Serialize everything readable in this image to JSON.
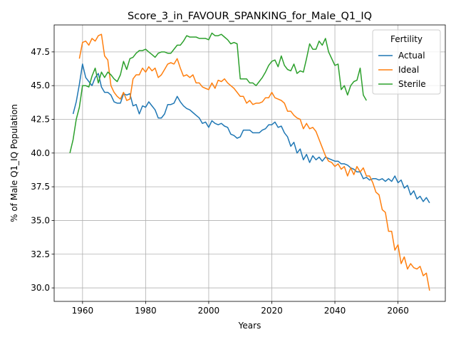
{
  "chart_data": {
    "type": "line",
    "title": "Score_3_in_FAVOUR_SPANKING_for_Male_Q1_IQ",
    "xlabel": "Years",
    "ylabel": "% of Male Q1_IQ Population",
    "xlim": [
      1951,
      2075
    ],
    "ylim": [
      29.0,
      49.5
    ],
    "xticks": [
      1960,
      1980,
      2000,
      2020,
      2040,
      2060
    ],
    "yticks": [
      30.0,
      32.5,
      35.0,
      37.5,
      40.0,
      42.5,
      45.0,
      47.5
    ],
    "grid": true,
    "legend": {
      "title": "Fertility",
      "placement": "top-right"
    },
    "series": [
      {
        "name": "Actual",
        "color": "#1f77b4",
        "x": [
          1957,
          1958,
          1959,
          1960,
          1961,
          1962,
          1963,
          1964,
          1965,
          1966,
          1967,
          1968,
          1969,
          1970,
          1971,
          1972,
          1973,
          1974,
          1975,
          1976,
          1977,
          1978,
          1979,
          1980,
          1981,
          1982,
          1983,
          1984,
          1985,
          1986,
          1987,
          1988,
          1989,
          1990,
          1991,
          1992,
          1993,
          1994,
          1995,
          1996,
          1997,
          1998,
          1999,
          2000,
          2001,
          2002,
          2003,
          2004,
          2005,
          2006,
          2007,
          2008,
          2009,
          2010,
          2011,
          2012,
          2013,
          2014,
          2015,
          2016,
          2017,
          2018,
          2019,
          2020,
          2021,
          2022,
          2023,
          2024,
          2025,
          2026,
          2027,
          2028,
          2029,
          2030,
          2031,
          2032,
          2033,
          2034,
          2035,
          2036,
          2037,
          2038,
          2039,
          2040,
          2041,
          2042,
          2043,
          2044,
          2045,
          2046,
          2047,
          2048,
          2049,
          2050,
          2051,
          2052,
          2053,
          2054,
          2055,
          2056,
          2057,
          2058,
          2059,
          2060,
          2061,
          2062,
          2063,
          2064,
          2065,
          2066,
          2067,
          2068,
          2069,
          2070
        ],
        "values": [
          42.9,
          43.8,
          45.1,
          46.6,
          45.6,
          45.3,
          45.0,
          45.6,
          45.9,
          44.9,
          44.5,
          44.5,
          44.3,
          43.8,
          43.7,
          43.7,
          44.4,
          44.3,
          44.4,
          43.5,
          43.6,
          42.9,
          43.5,
          43.4,
          43.8,
          43.5,
          43.2,
          42.6,
          42.6,
          42.9,
          43.6,
          43.6,
          43.7,
          44.2,
          43.8,
          43.5,
          43.3,
          43.2,
          43.0,
          42.8,
          42.6,
          42.2,
          42.3,
          41.9,
          42.4,
          42.2,
          42.1,
          42.2,
          42.0,
          41.9,
          41.4,
          41.3,
          41.1,
          41.2,
          41.7,
          41.7,
          41.7,
          41.5,
          41.5,
          41.5,
          41.7,
          41.8,
          42.1,
          42.1,
          42.3,
          41.9,
          42.0,
          41.5,
          41.2,
          40.5,
          40.8,
          40.0,
          40.3,
          39.5,
          39.9,
          39.3,
          39.8,
          39.5,
          39.7,
          39.4,
          39.7,
          39.6,
          39.5,
          39.4,
          39.4,
          39.2,
          39.2,
          39.1,
          38.9,
          38.8,
          38.6,
          38.6,
          38.1,
          38.2,
          38.0,
          38.1,
          38.1,
          38.0,
          38.1,
          37.9,
          38.1,
          37.9,
          38.3,
          37.8,
          38.0,
          37.4,
          37.6,
          36.9,
          37.2,
          36.6,
          36.8,
          36.4,
          36.7,
          36.3
        ]
      },
      {
        "name": "Ideal",
        "color": "#ff7f0e",
        "x": [
          1959,
          1960,
          1961,
          1962,
          1963,
          1964,
          1965,
          1966,
          1967,
          1968,
          1969,
          1970,
          1971,
          1972,
          1973,
          1974,
          1975,
          1976,
          1977,
          1978,
          1979,
          1980,
          1981,
          1982,
          1983,
          1984,
          1985,
          1986,
          1987,
          1988,
          1989,
          1990,
          1991,
          1992,
          1993,
          1994,
          1995,
          1996,
          1997,
          1998,
          1999,
          2000,
          2001,
          2002,
          2003,
          2004,
          2005,
          2006,
          2007,
          2008,
          2009,
          2010,
          2011,
          2012,
          2013,
          2014,
          2015,
          2016,
          2017,
          2018,
          2019,
          2020,
          2021,
          2022,
          2023,
          2024,
          2025,
          2026,
          2027,
          2028,
          2029,
          2030,
          2031,
          2032,
          2033,
          2034,
          2035,
          2036,
          2037,
          2038,
          2039,
          2040,
          2041,
          2042,
          2043,
          2044,
          2045,
          2046,
          2047,
          2048,
          2049,
          2050,
          2051,
          2052,
          2053,
          2054,
          2055,
          2056,
          2057,
          2058,
          2059,
          2060,
          2061,
          2062,
          2063,
          2064,
          2065,
          2066,
          2067,
          2068,
          2069,
          2070
        ],
        "values": [
          47.0,
          48.2,
          48.3,
          48.0,
          48.5,
          48.3,
          48.7,
          48.8,
          47.2,
          46.9,
          45.0,
          44.5,
          44.2,
          44.0,
          44.5,
          43.9,
          44.0,
          45.5,
          45.8,
          45.8,
          46.3,
          46.0,
          46.4,
          46.1,
          46.3,
          45.6,
          45.8,
          46.2,
          46.6,
          46.7,
          46.6,
          47.0,
          46.3,
          45.7,
          45.8,
          45.6,
          45.8,
          45.2,
          45.2,
          44.9,
          44.8,
          44.7,
          45.2,
          44.8,
          45.4,
          45.3,
          45.5,
          45.2,
          45.0,
          44.8,
          44.5,
          44.2,
          44.2,
          43.7,
          43.9,
          43.6,
          43.7,
          43.7,
          43.8,
          44.1,
          44.1,
          44.5,
          44.1,
          44.0,
          43.9,
          43.7,
          43.1,
          43.1,
          42.8,
          42.6,
          42.5,
          41.8,
          42.2,
          41.8,
          41.9,
          41.6,
          41.0,
          40.4,
          39.8,
          39.4,
          39.3,
          39.0,
          39.2,
          38.8,
          39.0,
          38.3,
          38.9,
          38.4,
          39.0,
          38.6,
          38.9,
          38.3,
          38.3,
          37.8,
          37.1,
          36.9,
          35.8,
          35.6,
          34.2,
          34.2,
          32.8,
          33.2,
          31.8,
          32.3,
          31.4,
          31.8,
          31.5,
          31.4,
          31.6,
          30.9,
          31.1,
          29.8
        ]
      },
      {
        "name": "Sterile",
        "color": "#2ca02c",
        "x": [
          1956,
          1957,
          1958,
          1959,
          1960,
          1961,
          1962,
          1963,
          1964,
          1965,
          1966,
          1967,
          1968,
          1969,
          1970,
          1971,
          1972,
          1973,
          1974,
          1975,
          1976,
          1977,
          1978,
          1979,
          1980,
          1981,
          1982,
          1983,
          1984,
          1985,
          1986,
          1987,
          1988,
          1989,
          1990,
          1991,
          1992,
          1993,
          1994,
          1995,
          1996,
          1997,
          1998,
          1999,
          2000,
          2001,
          2002,
          2003,
          2004,
          2005,
          2006,
          2007,
          2008,
          2009,
          2010,
          2011,
          2012,
          2013,
          2014,
          2015,
          2016,
          2017,
          2018,
          2019,
          2020,
          2021,
          2022,
          2023,
          2024,
          2025,
          2026,
          2027,
          2028,
          2029,
          2030,
          2031,
          2032,
          2033,
          2034,
          2035,
          2036,
          2037,
          2038,
          2039,
          2040,
          2041,
          2042,
          2043,
          2044,
          2045,
          2046,
          2047,
          2048,
          2049,
          2050
        ],
        "values": [
          40.0,
          41.0,
          42.5,
          43.4,
          45.0,
          45.0,
          44.9,
          45.7,
          46.3,
          45.2,
          46.0,
          45.6,
          46.0,
          45.8,
          45.5,
          45.3,
          45.8,
          46.8,
          46.2,
          47.0,
          47.1,
          47.4,
          47.6,
          47.6,
          47.7,
          47.5,
          47.3,
          47.1,
          47.4,
          47.5,
          47.5,
          47.4,
          47.4,
          47.7,
          48.0,
          48.0,
          48.3,
          48.7,
          48.6,
          48.6,
          48.6,
          48.5,
          48.5,
          48.5,
          48.4,
          48.9,
          48.7,
          48.7,
          48.8,
          48.6,
          48.4,
          48.1,
          48.2,
          48.1,
          45.5,
          45.5,
          45.5,
          45.2,
          45.2,
          45.0,
          45.3,
          45.6,
          46.0,
          46.5,
          46.8,
          46.9,
          46.4,
          47.2,
          46.5,
          46.2,
          46.1,
          46.6,
          45.9,
          46.1,
          46.0,
          47.0,
          48.1,
          47.7,
          47.7,
          48.3,
          48.0,
          48.5,
          47.5,
          47.0,
          46.5,
          46.6,
          44.7,
          45.0,
          44.3,
          45.0,
          45.3,
          45.4,
          46.3,
          44.3,
          43.9
        ]
      }
    ]
  }
}
